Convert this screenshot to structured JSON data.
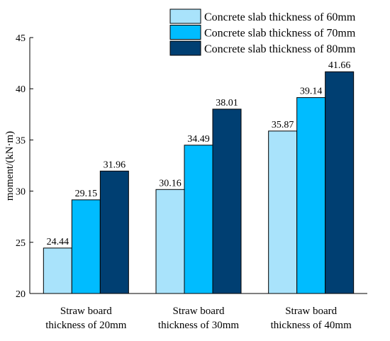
{
  "chart_data": {
    "type": "bar",
    "title": "",
    "xlabel": "",
    "ylabel": "moment/(kN·m)",
    "ylim": [
      20,
      45
    ],
    "yticks": [
      20,
      25,
      30,
      35,
      40,
      45
    ],
    "grid": false,
    "legend_position": "top-right",
    "categories": [
      [
        "Straw board",
        "thickness of 20mm"
      ],
      [
        "Straw board",
        "thickness of 30mm"
      ],
      [
        "Straw board",
        "thickness of 40mm"
      ]
    ],
    "series": [
      {
        "name": "Concrete slab thickness of 60mm",
        "color": "#a9e3fb",
        "values": [
          24.44,
          30.16,
          35.87
        ]
      },
      {
        "name": "Concrete slab thickness of 70mm",
        "color": "#00bcff",
        "values": [
          29.15,
          34.49,
          39.14
        ]
      },
      {
        "name": "Concrete slab thickness of 80mm",
        "color": "#003f72",
        "values": [
          31.96,
          38.01,
          41.66
        ]
      }
    ]
  }
}
